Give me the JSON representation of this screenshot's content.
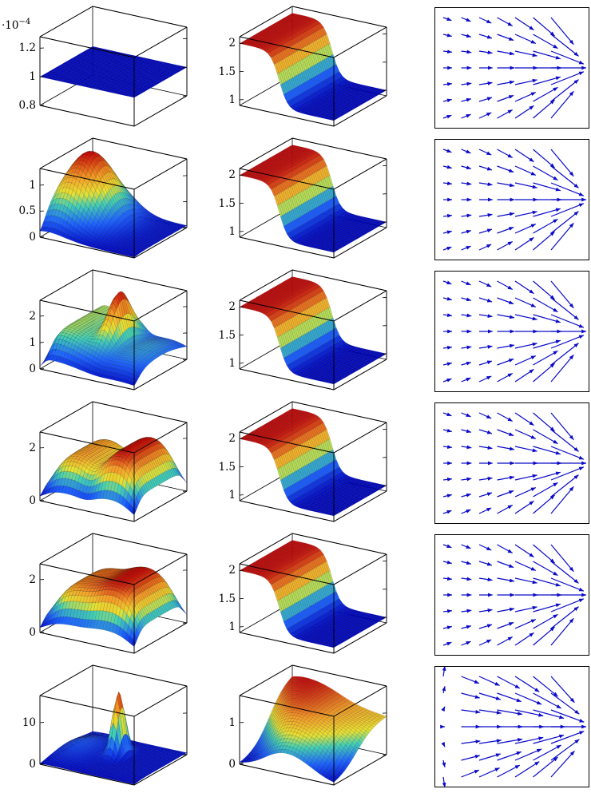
{
  "page": {
    "background": "#ffffff",
    "description": "Figure grid: 6 rows × 3 columns. Columns 1–2 are 3D colormapped surface plots, column 3 shows 2D vector (quiver) fields of blue arrows."
  },
  "colors": {
    "colormap_stops": [
      0,
      0.22,
      0.42,
      0.56,
      0.74,
      1
    ],
    "colormap_hex": [
      "#0008C8",
      "#1E64FF",
      "#43D0B4",
      "#E8E232",
      "#F59E28",
      "#C80A0A"
    ],
    "axis": "#000000",
    "arrow": "#0A0AC8",
    "mesh_line": "rgba(0,0,0,0.28)"
  },
  "chart_data": [
    {
      "id": "r1-left",
      "row": 1,
      "col": 1,
      "type": "surface",
      "shape": "constant-plane",
      "scale_label_base": "·10",
      "scale_label_exp": "−4",
      "zlim": [
        0.8,
        1.28
      ],
      "zticks": [
        {
          "v": 0.8,
          "label": "0.8"
        },
        {
          "v": 1,
          "label": "1"
        },
        {
          "v": 1.2,
          "label": "1.2"
        }
      ],
      "terms": [
        {
          "kind": "const",
          "a": 1
        }
      ],
      "env": []
    },
    {
      "id": "r1-mid",
      "row": 1,
      "col": 2,
      "type": "surface",
      "shape": "step-plateau",
      "zlim": [
        0.9,
        2.12
      ],
      "zticks": [
        {
          "v": 1,
          "label": "1"
        },
        {
          "v": 1.5,
          "label": "1.5"
        },
        {
          "v": 2,
          "label": "2"
        }
      ],
      "terms": [
        {
          "kind": "const",
          "a": 1
        },
        {
          "kind": "sigx",
          "a": 1,
          "c": 0.42,
          "k": -22
        }
      ],
      "env": []
    },
    {
      "id": "r1-right",
      "row": 1,
      "col": 3,
      "type": "quiver",
      "field": "converge",
      "grid": [
        7,
        7
      ]
    },
    {
      "id": "r2-left",
      "row": 2,
      "col": 1,
      "type": "surface",
      "shape": "single-bump",
      "zlim": [
        0,
        1.32
      ],
      "zticks": [
        {
          "v": 0,
          "label": "0"
        },
        {
          "v": 0.5,
          "label": "0.5"
        },
        {
          "v": 1,
          "label": "1"
        }
      ],
      "terms": [
        {
          "kind": "const",
          "a": 0.04
        },
        {
          "kind": "gauss",
          "a": 1.22,
          "cx": 0.22,
          "cy": 0.62,
          "sx": 0.3,
          "sy": 0.42
        },
        {
          "kind": "gauss",
          "a": 0.32,
          "cx": 0.06,
          "cy": 0.22,
          "sx": 0.22,
          "sy": 0.5
        }
      ],
      "env": [
        {
          "axis": "y",
          "k": 16,
          "c": 0.045,
          "floor": 0
        }
      ]
    },
    {
      "id": "r2-mid",
      "row": 2,
      "col": 2,
      "type": "surface",
      "shape": "step-plateau",
      "zlim": [
        0.9,
        2.12
      ],
      "zticks": [
        {
          "v": 1,
          "label": "1"
        },
        {
          "v": 1.5,
          "label": "1.5"
        },
        {
          "v": 2,
          "label": "2"
        }
      ],
      "terms": [
        {
          "kind": "const",
          "a": 1
        },
        {
          "kind": "sigx",
          "a": 1,
          "c": 0.42,
          "k": -22
        }
      ],
      "env": []
    },
    {
      "id": "r2-right",
      "row": 2,
      "col": 3,
      "type": "quiver",
      "field": "converge",
      "grid": [
        7,
        7
      ]
    },
    {
      "id": "r3-left",
      "row": 3,
      "col": 1,
      "type": "surface",
      "shape": "plateau-with-peak",
      "zlim": [
        0,
        2.6
      ],
      "zticks": [
        {
          "v": 0,
          "label": "0"
        },
        {
          "v": 1,
          "label": "1"
        },
        {
          "v": 2,
          "label": "2"
        }
      ],
      "terms": [
        {
          "kind": "sigx",
          "a": 1.45,
          "c": 0.46,
          "k": -9
        },
        {
          "kind": "gauss",
          "a": 1.7,
          "cx": 0.5,
          "cy": 0.62,
          "sx": 0.09,
          "sy": 0.28
        },
        {
          "kind": "gauss",
          "a": 0.85,
          "cx": 0.85,
          "cy": 0.5,
          "sx": 0.35,
          "sy": 0.8
        }
      ],
      "env": [
        {
          "axis": "y",
          "k": 16,
          "c": 0.05,
          "floor": 0
        },
        {
          "axis": "x",
          "k": 40,
          "c": 0.03,
          "floor": 0
        }
      ]
    },
    {
      "id": "r3-mid",
      "row": 3,
      "col": 2,
      "type": "surface",
      "shape": "step-plateau",
      "zlim": [
        0.9,
        2.12
      ],
      "zticks": [
        {
          "v": 1,
          "label": "1"
        },
        {
          "v": 1.5,
          "label": "1.5"
        },
        {
          "v": 2,
          "label": "2"
        }
      ],
      "terms": [
        {
          "kind": "const",
          "a": 1
        },
        {
          "kind": "sigx",
          "a": 1,
          "c": 0.42,
          "k": -22
        }
      ],
      "env": []
    },
    {
      "id": "r3-right",
      "row": 3,
      "col": 3,
      "type": "quiver",
      "field": "converge",
      "grid": [
        7,
        7
      ]
    },
    {
      "id": "r4-left",
      "row": 4,
      "col": 1,
      "type": "surface",
      "shape": "two-plateaus",
      "zlim": [
        0,
        2.6
      ],
      "zticks": [
        {
          "v": 0,
          "label": "0"
        },
        {
          "v": 2,
          "label": "2"
        }
      ],
      "terms": [
        {
          "kind": "boxx",
          "a": 1.75,
          "k": 16,
          "lo": 0.04,
          "hi": 0.45
        },
        {
          "kind": "boxx",
          "a": 2.35,
          "k": 14,
          "lo": 0.53,
          "hi": 0.96
        }
      ],
      "env": [
        {
          "axis": "y",
          "k": 18,
          "c": 0.05,
          "floor": 0
        },
        {
          "axis": "y",
          "k": -18,
          "c": 0.97,
          "floor": 0
        }
      ]
    },
    {
      "id": "r4-mid",
      "row": 4,
      "col": 2,
      "type": "surface",
      "shape": "step-plateau",
      "zlim": [
        0.9,
        2.12
      ],
      "zticks": [
        {
          "v": 1,
          "label": "1"
        },
        {
          "v": 1.5,
          "label": "1.5"
        },
        {
          "v": 2,
          "label": "2"
        }
      ],
      "terms": [
        {
          "kind": "const",
          "a": 1
        },
        {
          "kind": "sigx",
          "a": 1,
          "c": 0.42,
          "k": -22
        }
      ],
      "env": []
    },
    {
      "id": "r4-right",
      "row": 4,
      "col": 3,
      "type": "quiver",
      "field": "converge",
      "grid": [
        7,
        7
      ]
    },
    {
      "id": "r5-left",
      "row": 5,
      "col": 1,
      "type": "surface",
      "shape": "two-plateaus-merged",
      "zlim": [
        0,
        2.6
      ],
      "zticks": [
        {
          "v": 0,
          "label": "0"
        },
        {
          "v": 2,
          "label": "2"
        }
      ],
      "terms": [
        {
          "kind": "boxx",
          "a": 1.9,
          "k": 13,
          "lo": 0.05,
          "hi": 0.48
        },
        {
          "kind": "boxx",
          "a": 2.3,
          "k": 13,
          "lo": 0.5,
          "hi": 0.96
        }
      ],
      "env": [
        {
          "axis": "y",
          "k": 18,
          "c": 0.05,
          "floor": 0
        },
        {
          "axis": "y",
          "k": -18,
          "c": 0.97,
          "floor": 0
        }
      ]
    },
    {
      "id": "r5-mid",
      "row": 5,
      "col": 2,
      "type": "surface",
      "shape": "step-plateau",
      "zlim": [
        0.9,
        2.12
      ],
      "zticks": [
        {
          "v": 1,
          "label": "1"
        },
        {
          "v": 1.5,
          "label": "1.5"
        },
        {
          "v": 2,
          "label": "2"
        }
      ],
      "terms": [
        {
          "kind": "const",
          "a": 1
        },
        {
          "kind": "sigx",
          "a": 1,
          "c": 0.42,
          "k": -22
        }
      ],
      "env": []
    },
    {
      "id": "r5-right",
      "row": 5,
      "col": 3,
      "type": "quiver",
      "field": "converge",
      "grid": [
        7,
        7
      ]
    },
    {
      "id": "r6-left",
      "row": 6,
      "col": 1,
      "type": "surface",
      "shape": "sharp-spike",
      "zlim": [
        0,
        16.5
      ],
      "zticks": [
        {
          "v": 0,
          "label": "0"
        },
        {
          "v": 10,
          "label": "10"
        }
      ],
      "terms": [
        {
          "kind": "const",
          "a": 0.45
        },
        {
          "kind": "gauss",
          "a": 15,
          "cx": 0.5,
          "cy": 0.6,
          "sx": 0.065,
          "sy": 0.13
        },
        {
          "kind": "gauss",
          "a": 2.3,
          "cx": 0.16,
          "cy": 0.52,
          "sx": 0.18,
          "sy": 0.35
        }
      ],
      "env": [
        {
          "axis": "y",
          "k": 16,
          "c": 0.045,
          "floor": 0
        }
      ]
    },
    {
      "id": "r6-mid",
      "row": 6,
      "col": 2,
      "type": "surface",
      "shape": "curved-step",
      "zlim": [
        0,
        1.65
      ],
      "zticks": [
        {
          "v": 0,
          "label": "0"
        },
        {
          "v": 1,
          "label": "1"
        }
      ],
      "terms": [
        {
          "kind": "wavestep",
          "a": 0.75,
          "b": 0.75,
          "s": 3,
          "c": 0.5,
          "m": 0.45,
          "p": 0.05
        }
      ],
      "env": [
        {
          "axis": "x",
          "k": -7,
          "c": 0.5,
          "floor": 0.62
        }
      ]
    },
    {
      "id": "r6-right",
      "row": 6,
      "col": 3,
      "type": "quiver",
      "field": "diverge-left",
      "grid": [
        7,
        7
      ]
    }
  ]
}
